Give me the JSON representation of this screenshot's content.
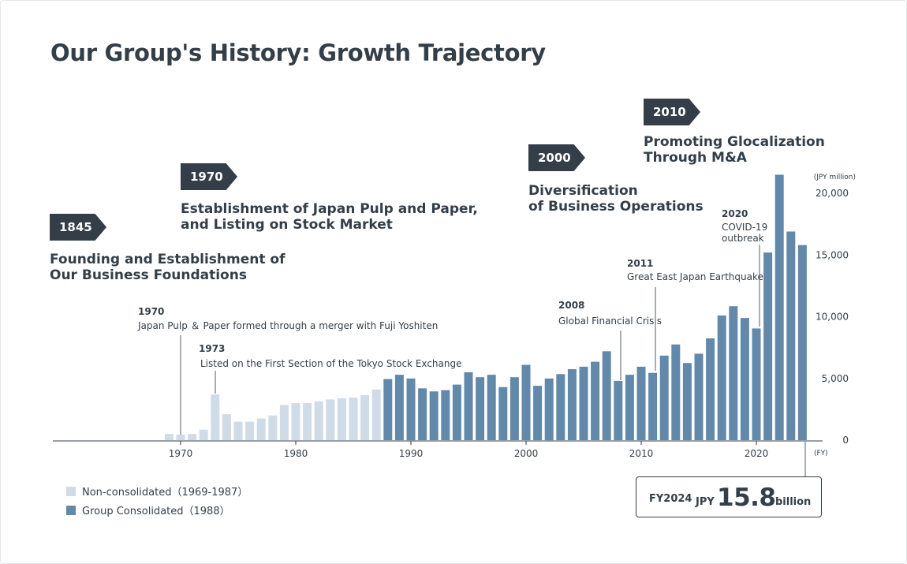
{
  "page": {
    "title": "Our Group's History: Growth Trajectory"
  },
  "eras": [
    {
      "year": "1845",
      "heading_lines": [
        "Founding and Establishment of",
        "Our Business Foundations"
      ]
    },
    {
      "year": "1970",
      "heading_lines": [
        "Establishment of Japan Pulp and Paper,",
        "and Listing on Stock Market"
      ]
    },
    {
      "year": "2000",
      "heading_lines": [
        "Diversification",
        "of Business Operations"
      ]
    },
    {
      "year": "2010",
      "heading_lines": [
        "Promoting Glocalization",
        "Through M&A"
      ]
    }
  ],
  "events": [
    {
      "year": "1970",
      "lines": [
        "Japan Pulp ＆ Paper formed through a merger with Fuji Yoshiten"
      ]
    },
    {
      "year": "1973",
      "lines": [
        "Listed on the First Section of the Tokyo Stock Exchange"
      ]
    },
    {
      "year": "2008",
      "lines": [
        "Global Financial Crisis"
      ]
    },
    {
      "year": "2011",
      "lines": [
        "Great East Japan Earthquake"
      ]
    },
    {
      "year": "2020",
      "lines": [
        "COVID-19",
        "outbreak"
      ]
    }
  ],
  "legend": [
    {
      "label": "Non-consolidated（1969-1987）",
      "color": "#cfdbe6"
    },
    {
      "label": "Group Consolidated（1988）",
      "color": "#6288aa"
    }
  ],
  "callout": {
    "fy": "FY2024",
    "currency": "JPY",
    "value": "15.8",
    "unit": "billion"
  },
  "chart_data": {
    "type": "bar",
    "y_unit_label": "(JPY million)",
    "x_unit_label": "(FY)",
    "xlim": [
      1960,
      2025
    ],
    "ylim": [
      0,
      20000
    ],
    "x_ticks": [
      "1970",
      "1980",
      "1990",
      "2000",
      "2010",
      "2020"
    ],
    "y_ticks": [
      "0",
      "5,000",
      "10,000",
      "15,000",
      "20,000"
    ],
    "series": [
      {
        "name": "Non-consolidated（1969-1987）",
        "color": "#cfdbe6",
        "x": [
          1969,
          1970,
          1971,
          1972,
          1973,
          1974,
          1975,
          1976,
          1977,
          1978,
          1979,
          1980,
          1981,
          1982,
          1983,
          1984,
          1985,
          1986,
          1987
        ],
        "values": [
          500,
          450,
          500,
          850,
          3700,
          2100,
          1500,
          1500,
          1750,
          2000,
          2850,
          3000,
          3000,
          3150,
          3300,
          3400,
          3450,
          3650,
          4100
        ]
      },
      {
        "name": "Group Consolidated（1988）",
        "color": "#6288aa",
        "x": [
          1988,
          1989,
          1990,
          1991,
          1992,
          1993,
          1994,
          1995,
          1996,
          1997,
          1998,
          1999,
          2000,
          2001,
          2002,
          2003,
          2004,
          2005,
          2006,
          2007,
          2008,
          2009,
          2010,
          2011,
          2012,
          2013,
          2014,
          2015,
          2016,
          2017,
          2018,
          2019,
          2020,
          2021,
          2022,
          2023,
          2024
        ],
        "values": [
          4950,
          5300,
          5000,
          4200,
          3950,
          4050,
          4500,
          5500,
          5100,
          5300,
          4300,
          5100,
          6100,
          4400,
          5000,
          5350,
          5750,
          5950,
          6350,
          7200,
          4800,
          5300,
          5950,
          5450,
          6850,
          7750,
          6250,
          7000,
          8250,
          10100,
          10850,
          9900,
          9050,
          15200,
          21500,
          16900,
          15800
        ]
      }
    ]
  }
}
